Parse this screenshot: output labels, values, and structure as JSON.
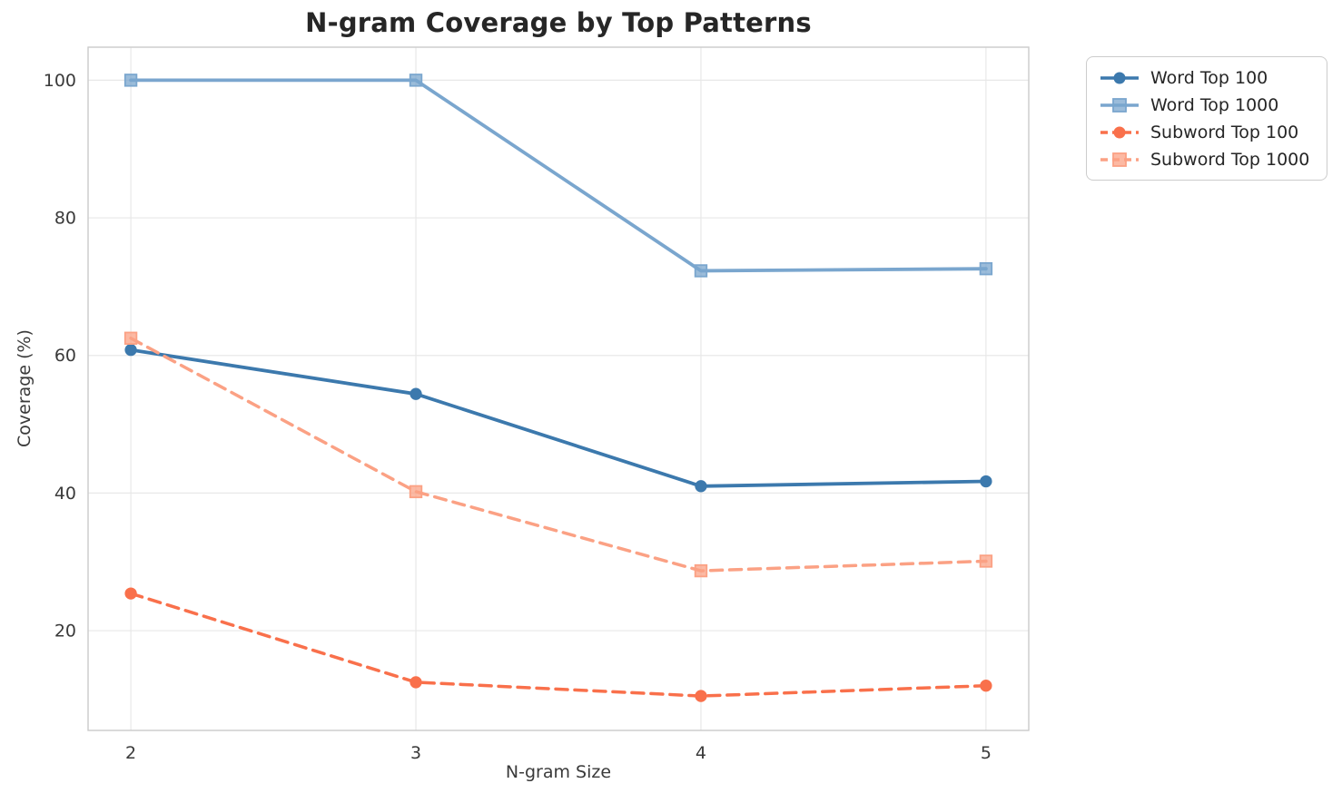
{
  "chart_data": {
    "type": "line",
    "title": "N-gram Coverage by Top Patterns",
    "xlabel": "N-gram Size",
    "ylabel": "Coverage (%)",
    "x": [
      2,
      3,
      4,
      5
    ],
    "xticks": [
      "2",
      "3",
      "4",
      "5"
    ],
    "yticks": [
      20,
      40,
      60,
      80,
      100
    ],
    "xlim": [
      1.85,
      5.15
    ],
    "ylim": [
      5.5,
      104.8
    ],
    "grid": true,
    "legend_position": "outside-top-right",
    "series": [
      {
        "name": "Word Top 100",
        "values": [
          60.8,
          54.4,
          41.0,
          41.7
        ],
        "color": "#3c79ad",
        "style": "solid",
        "marker": "circle"
      },
      {
        "name": "Word Top 1000",
        "values": [
          100.0,
          100.0,
          72.3,
          72.6
        ],
        "color": "#7aa6ce",
        "style": "solid",
        "marker": "square"
      },
      {
        "name": "Subword Top 100",
        "values": [
          25.4,
          12.5,
          10.5,
          12.0
        ],
        "color": "#f9704b",
        "style": "dashed",
        "marker": "circle"
      },
      {
        "name": "Subword Top 1000",
        "values": [
          62.5,
          40.2,
          28.7,
          30.1
        ],
        "color": "#fba184",
        "style": "dashed",
        "marker": "square"
      }
    ],
    "colors": {
      "grid": "#e8e8e8",
      "spine": "#cbcbcb",
      "tick_label": "#3a3a3a",
      "title": "#262626",
      "legend_border": "#cccccc",
      "background": "#ffffff"
    }
  }
}
